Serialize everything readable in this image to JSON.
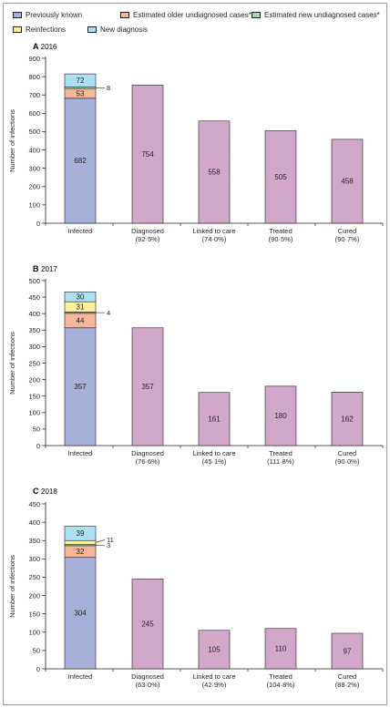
{
  "legend": [
    {
      "key": "previously_known",
      "label": "Previously known",
      "color": "#a7b0d9"
    },
    {
      "key": "older_undiagnosed",
      "label": "Estimated older undiagnosed cases*",
      "color": "#f6b69a"
    },
    {
      "key": "new_undiagnosed",
      "label": "Estimated new undiagnosed cases*",
      "color": "#a8d5b0"
    },
    {
      "key": "reinfections",
      "label": "Reinfections",
      "color": "#fdf09a"
    },
    {
      "key": "new_diagnosis",
      "label": "New diagnosis",
      "color": "#aee0f1"
    }
  ],
  "colors": {
    "cascade": "#d2a8ca",
    "axis": "#231f20"
  },
  "chart_data": [
    {
      "type": "bar",
      "panel_letter": "A",
      "panel_year": "2016",
      "ylabel": "Number of infections",
      "ylim": [
        0,
        900
      ],
      "yticks": [
        0,
        100,
        200,
        300,
        400,
        500,
        600,
        700,
        800,
        900
      ],
      "infected": {
        "category": "Infected",
        "segments": [
          {
            "key": "previously_known",
            "value": 682
          },
          {
            "key": "older_undiagnosed",
            "value": 53
          },
          {
            "key": "new_undiagnosed",
            "value": 8
          },
          {
            "key": "new_diagnosis",
            "value": 72
          }
        ]
      },
      "cascade": [
        {
          "category": "Diagnosed",
          "pct": "(92·5%)",
          "value": 754
        },
        {
          "category": "Linked to care",
          "pct": "(74·0%)",
          "value": 558
        },
        {
          "category": "Treated",
          "pct": "(90·5%)",
          "value": 505
        },
        {
          "category": "Cured",
          "pct": "(90·7%)",
          "value": 458
        }
      ]
    },
    {
      "type": "bar",
      "panel_letter": "B",
      "panel_year": "2017",
      "ylabel": "Number of infections",
      "ylim": [
        0,
        500
      ],
      "yticks": [
        0,
        50,
        100,
        150,
        200,
        250,
        300,
        350,
        400,
        450,
        500
      ],
      "infected": {
        "category": "Infected",
        "segments": [
          {
            "key": "previously_known",
            "value": 357
          },
          {
            "key": "older_undiagnosed",
            "value": 44
          },
          {
            "key": "new_undiagnosed",
            "value": 4
          },
          {
            "key": "reinfections",
            "value": 31
          },
          {
            "key": "new_diagnosis",
            "value": 30
          }
        ]
      },
      "cascade": [
        {
          "category": "Diagnosed",
          "pct": "(76·6%)",
          "value": 357
        },
        {
          "category": "Linked to care",
          "pct": "(45·1%)",
          "value": 161
        },
        {
          "category": "Treated",
          "pct": "(111·8%)",
          "value": 180
        },
        {
          "category": "Cured",
          "pct": "(90·0%)",
          "value": 162
        }
      ]
    },
    {
      "type": "bar",
      "panel_letter": "C",
      "panel_year": "2018",
      "ylabel": "Number of infections",
      "ylim": [
        0,
        450
      ],
      "yticks": [
        0,
        50,
        100,
        150,
        200,
        250,
        300,
        350,
        400,
        450
      ],
      "infected": {
        "category": "Infected",
        "segments": [
          {
            "key": "previously_known",
            "value": 304
          },
          {
            "key": "older_undiagnosed",
            "value": 32
          },
          {
            "key": "new_undiagnosed",
            "value": 3
          },
          {
            "key": "reinfections",
            "value": 11
          },
          {
            "key": "new_diagnosis",
            "value": 39
          }
        ]
      },
      "cascade": [
        {
          "category": "Diagnosed",
          "pct": "(63·0%)",
          "value": 245
        },
        {
          "category": "Linked to care",
          "pct": "(42·9%)",
          "value": 105
        },
        {
          "category": "Treated",
          "pct": "(104·8%)",
          "value": 110
        },
        {
          "category": "Cured",
          "pct": "(88·2%)",
          "value": 97
        }
      ]
    }
  ]
}
